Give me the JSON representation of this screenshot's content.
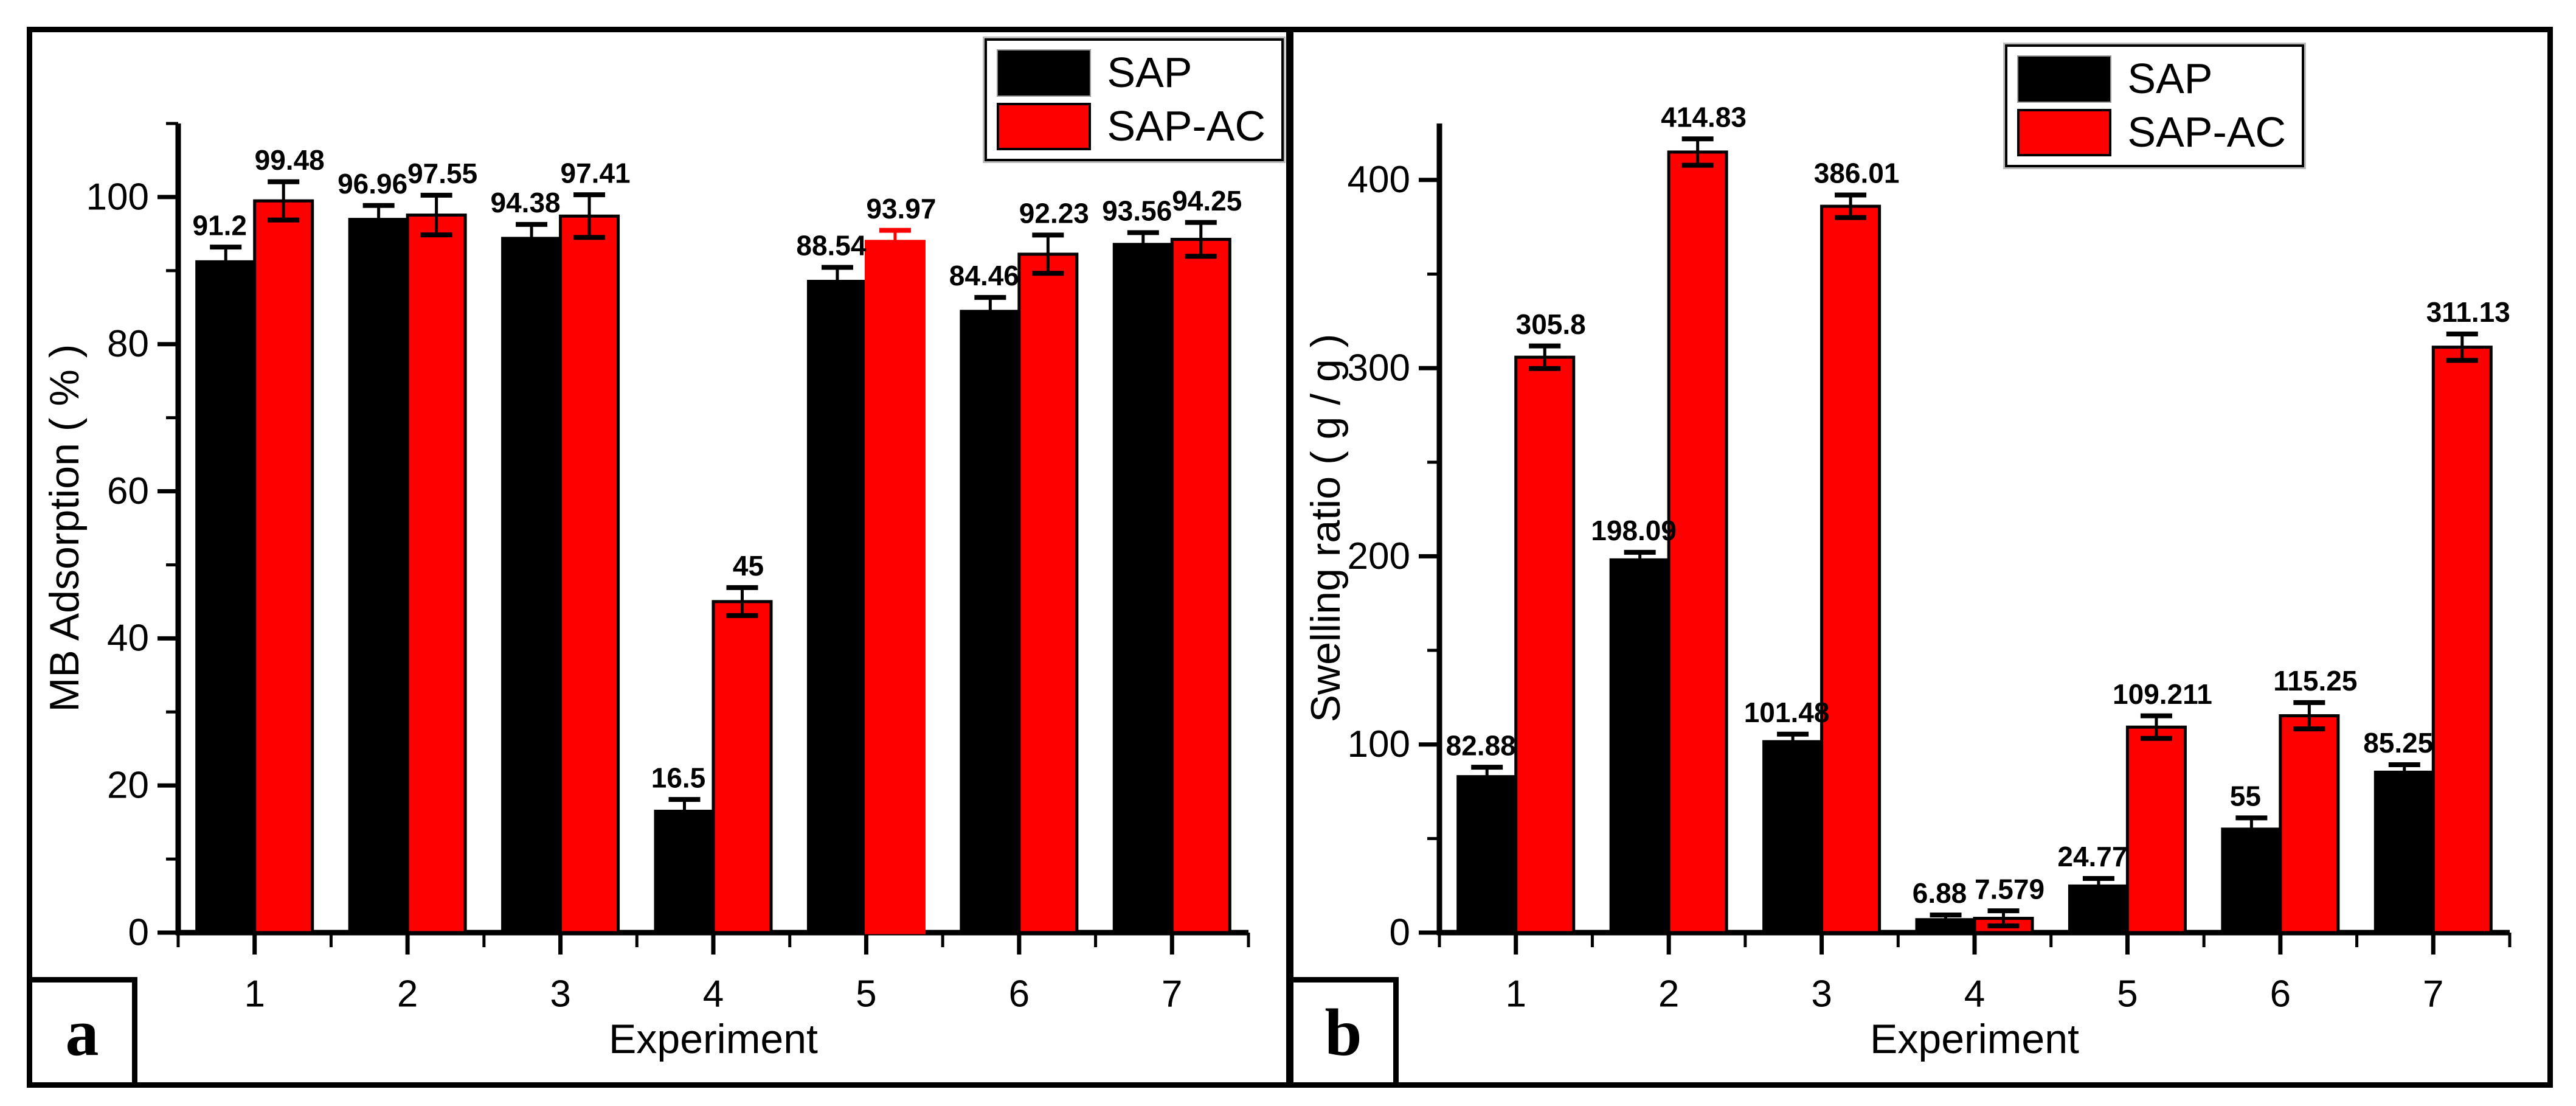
{
  "figure": {
    "panel_count": 2,
    "series_colors": {
      "SAP": "#000000",
      "SAP-AC": "#ff0000"
    }
  },
  "chart_data": [
    {
      "type": "bar",
      "corner_label": "a",
      "xlabel": "Experiment",
      "ylabel": "MB Adsorption ( % )",
      "ylim": [
        0,
        110
      ],
      "y_major": [
        0,
        20,
        40,
        60,
        80,
        100
      ],
      "y_tick_labels": [
        "0",
        "20",
        "40",
        "60",
        "80",
        "100"
      ],
      "y_minor": [
        10,
        30,
        50,
        70,
        90,
        110
      ],
      "grid": false,
      "legend_position": "top-right",
      "categories": [
        "1",
        "2",
        "3",
        "4",
        "5",
        "6",
        "7"
      ],
      "series": [
        {
          "name": "SAP",
          "color": "#000000",
          "values": [
            91.2,
            96.96,
            94.38,
            16.5,
            88.54,
            84.46,
            93.56
          ],
          "errors": [
            2.0,
            1.9,
            1.9,
            1.6,
            1.9,
            1.9,
            1.6
          ],
          "labels": [
            "91.2",
            "96.96",
            "94.38",
            "16.5",
            "88.54",
            "84.46",
            "93.56"
          ]
        },
        {
          "name": "SAP-AC",
          "color": "#ff0000",
          "values": [
            99.48,
            97.55,
            97.41,
            45,
            93.97,
            92.23,
            94.25
          ],
          "errors": [
            2.6,
            2.7,
            2.9,
            1.9,
            1.5,
            2.6,
            2.3
          ],
          "labels": [
            "99.48",
            "97.55",
            "97.41",
            "45",
            "93.97",
            "92.23",
            "94.25"
          ],
          "errbar_color_overrides": {
            "4": "#ff0000"
          },
          "outline_overrides": {
            "4": "#ff0000"
          }
        }
      ]
    },
    {
      "type": "bar",
      "corner_label": "b",
      "xlabel": "Experiment",
      "ylabel": "Swelling ratio ( g / g )",
      "ylim": [
        0,
        430
      ],
      "y_major": [
        0,
        100,
        200,
        300,
        400
      ],
      "y_tick_labels": [
        "0",
        "100",
        "200",
        "300",
        "400"
      ],
      "y_minor": [
        50,
        150,
        250,
        350
      ],
      "grid": false,
      "legend_position": "top-right",
      "categories": [
        "1",
        "2",
        "3",
        "4",
        "5",
        "6",
        "7"
      ],
      "series": [
        {
          "name": "SAP",
          "color": "#000000",
          "values": [
            82.88,
            198.09,
            101.48,
            6.88,
            24.77,
            55,
            85.25
          ],
          "errors": [
            5,
            4,
            4,
            2.5,
            4,
            6,
            4
          ],
          "labels": [
            "82.88",
            "198.09",
            "101.48",
            "6.88",
            "24.77",
            "55",
            "85.25"
          ]
        },
        {
          "name": "SAP-AC",
          "color": "#ff0000",
          "values": [
            305.8,
            414.83,
            386.01,
            7.579,
            109.211,
            115.25,
            311.13
          ],
          "errors": [
            6,
            7,
            6,
            4,
            6,
            7,
            7
          ],
          "labels": [
            "305.8",
            "414.83",
            "386.01",
            "7.579",
            "109.211",
            "115.25",
            "311.13"
          ]
        }
      ]
    }
  ]
}
